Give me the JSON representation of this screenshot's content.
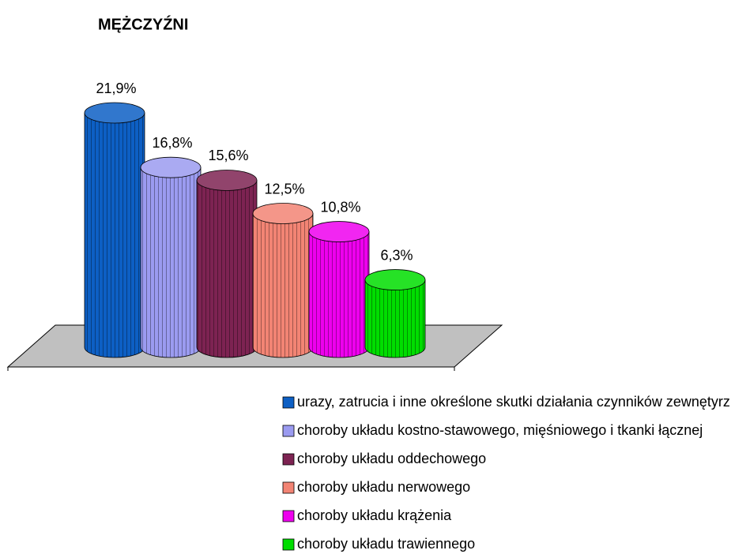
{
  "chart_data": {
    "type": "bar",
    "title": "MĘŻCZYŹNI",
    "series": [
      {
        "name": "urazy, zatrucia i inne określone skutki działania czynników zewnętyrznych",
        "color": "#0d5fc4",
        "values": [
          21.9
        ],
        "value_labels": [
          "21,9%"
        ]
      },
      {
        "name": "choroby układu kostno-stawowego, mięśniowego i tkanki łącznej",
        "color": "#9b9bf0",
        "values": [
          16.8
        ],
        "value_labels": [
          "16,8%"
        ]
      },
      {
        "name": "choroby układu oddechowego",
        "color": "#7d2352",
        "values": [
          15.6
        ],
        "value_labels": [
          "15,6%"
        ]
      },
      {
        "name": "choroby układu nerwowego",
        "color": "#f28474",
        "values": [
          12.5
        ],
        "value_labels": [
          "12,5%"
        ]
      },
      {
        "name": "choroby układu krążenia",
        "color": "#ee00ee",
        "values": [
          10.8
        ],
        "value_labels": [
          "10,8%"
        ]
      },
      {
        "name": "choroby układu trawiennego",
        "color": "#00dd00",
        "values": [
          6.3
        ],
        "value_labels": [
          "6,3%"
        ]
      }
    ]
  }
}
